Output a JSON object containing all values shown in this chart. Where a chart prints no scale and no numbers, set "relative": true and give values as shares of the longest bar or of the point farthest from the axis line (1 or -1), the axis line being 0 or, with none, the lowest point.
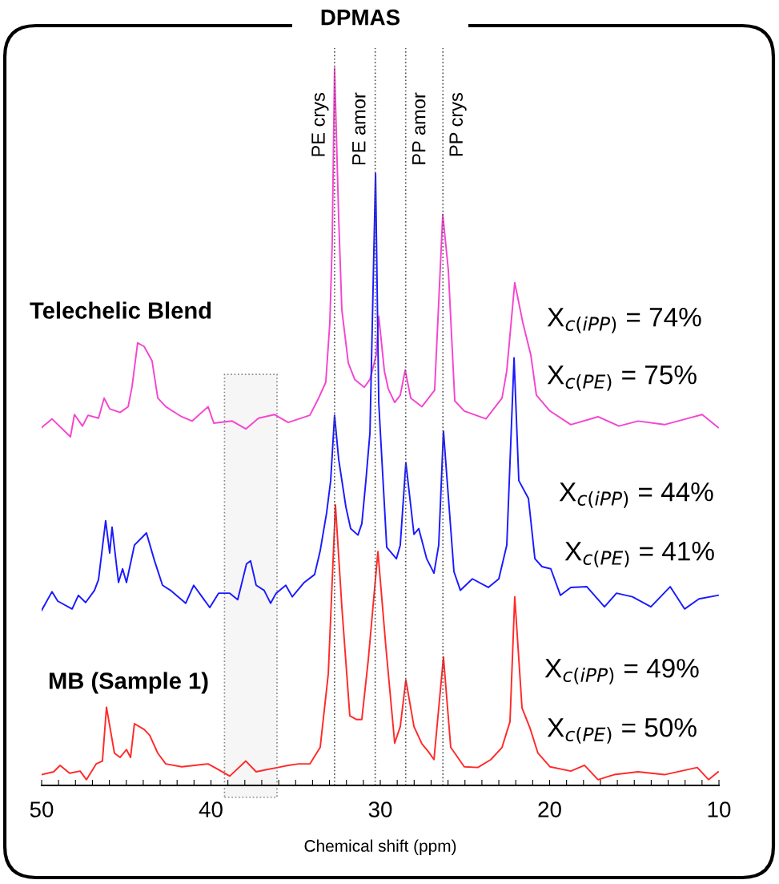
{
  "chart_data": {
    "type": "line",
    "title": "DPMAS",
    "xlabel": "Chemical shift (ppm)",
    "relative": true,
    "xlim": [
      50,
      10
    ],
    "xticks": [
      50,
      {
        "value": 49,
        "label": null
      },
      {
        "value": 48,
        "label": null
      },
      {
        "value": 47,
        "label": null
      },
      {
        "value": 46,
        "label": null
      },
      {
        "value": 45,
        "label": null
      },
      {
        "value": 44,
        "label": null
      },
      {
        "value": 43,
        "label": null
      },
      {
        "value": 42,
        "label": null
      },
      {
        "value": 41,
        "label": null
      },
      40,
      {
        "value": 39,
        "label": null
      },
      {
        "value": 38,
        "label": null
      },
      {
        "value": 37,
        "label": null
      },
      {
        "value": 36,
        "label": null
      },
      {
        "value": 35,
        "label": null
      },
      {
        "value": 34,
        "label": null
      },
      {
        "value": 33,
        "label": null
      },
      {
        "value": 32,
        "label": null
      },
      {
        "value": 31,
        "label": null
      },
      30,
      {
        "value": 29,
        "label": null
      },
      {
        "value": 28,
        "label": null
      },
      {
        "value": 27,
        "label": null
      },
      {
        "value": 26,
        "label": null
      },
      {
        "value": 25,
        "label": null
      },
      {
        "value": 24,
        "label": null
      },
      {
        "value": 23,
        "label": null
      },
      {
        "value": 22,
        "label": null
      },
      {
        "value": 21,
        "label": null
      },
      20,
      {
        "value": 19,
        "label": null
      },
      {
        "value": 18,
        "label": null
      },
      {
        "value": 17,
        "label": null
      },
      {
        "value": 16,
        "label": null
      },
      {
        "value": 15,
        "label": null
      },
      {
        "value": 14,
        "label": null
      },
      {
        "value": 13,
        "label": null
      },
      {
        "value": 12,
        "label": null
      },
      {
        "value": 11,
        "label": null
      },
      10
    ],
    "grid": false,
    "line_style": "solid",
    "marker": "none",
    "series": [
      {
        "name": "Telechelic Blend",
        "color": "#f545d0",
        "x": [
          50.0,
          49.39,
          48.3,
          48.06,
          47.59,
          47.26,
          46.64,
          46.31,
          45.98,
          45.37,
          44.89,
          44.66,
          44.33,
          43.95,
          43.48,
          43.14,
          42.67,
          41.73,
          41.11,
          40.17,
          39.83,
          38.75,
          37.94,
          37.19,
          36.24,
          35.44,
          34.16,
          33.64,
          33.22,
          32.98,
          32.84,
          32.7,
          32.46,
          32.27,
          31.89,
          31.51,
          30.95,
          30.61,
          30.24,
          30.09,
          29.76,
          29.53,
          29.15,
          28.82,
          28.53,
          28.2,
          27.54,
          26.79,
          26.31,
          25.98,
          25.6,
          25.04,
          23.76,
          22.81,
          22.53,
          22.06,
          21.58,
          21.11,
          20.78,
          19.98,
          18.75,
          17.14,
          15.91,
          14.78,
          13.22,
          11.94,
          10.99,
          10.05
        ],
        "values": [
          0.499,
          0.511,
          0.486,
          0.517,
          0.501,
          0.516,
          0.512,
          0.54,
          0.525,
          0.52,
          0.528,
          0.556,
          0.617,
          0.612,
          0.592,
          0.54,
          0.528,
          0.514,
          0.508,
          0.528,
          0.505,
          0.508,
          0.497,
          0.512,
          0.517,
          0.506,
          0.516,
          0.54,
          0.562,
          0.645,
          0.756,
          1,
          0.793,
          0.663,
          0.589,
          0.566,
          0.555,
          0.566,
          0.6,
          0.654,
          0.578,
          0.553,
          0.534,
          0.544,
          0.579,
          0.54,
          0.528,
          0.551,
          0.796,
          0.718,
          0.536,
          0.522,
          0.511,
          0.54,
          0.578,
          0.701,
          0.645,
          0.6,
          0.544,
          0.522,
          0.503,
          0.514,
          0.501,
          0.508,
          0.503,
          0.511,
          0.517,
          0.499
        ]
      },
      {
        "color": "#1a1aff",
        "x": [
          50.0,
          49.39,
          49.05,
          48.2,
          47.83,
          47.4,
          46.88,
          46.64,
          46.22,
          45.98,
          45.84,
          45.46,
          45.22,
          44.99,
          44.52,
          43.81,
          43.33,
          42.86,
          42.39,
          41.49,
          41.02,
          40.07,
          39.55,
          38.89,
          38.42,
          37.9,
          37.66,
          37.33,
          36.86,
          36.48,
          36.15,
          35.58,
          35.2,
          34.49,
          33.88,
          33.55,
          33.17,
          32.93,
          32.7,
          32.46,
          32.03,
          31.75,
          31.32,
          31.09,
          30.85,
          30.61,
          30.28,
          30.09,
          29.62,
          29.05,
          28.82,
          28.49,
          28.01,
          27.73,
          27.26,
          26.83,
          26.55,
          26.27,
          25.65,
          25.27,
          24.56,
          23.62,
          23.0,
          22.53,
          22.1,
          21.82,
          21.25,
          20.87,
          20.45,
          19.93,
          19.36,
          18.75,
          17.8,
          16.76,
          16.05,
          15.11,
          14.02,
          12.88,
          12.03,
          11.18,
          10.05
        ],
        "values": [
          0.244,
          0.27,
          0.257,
          0.246,
          0.265,
          0.255,
          0.272,
          0.287,
          0.369,
          0.324,
          0.36,
          0.283,
          0.302,
          0.283,
          0.335,
          0.352,
          0.313,
          0.279,
          0.272,
          0.254,
          0.279,
          0.248,
          0.268,
          0.268,
          0.259,
          0.309,
          0.313,
          0.279,
          0.272,
          0.254,
          0.268,
          0.279,
          0.263,
          0.283,
          0.294,
          0.327,
          0.38,
          0.425,
          0.516,
          0.455,
          0.388,
          0.358,
          0.349,
          0.365,
          0.425,
          0.492,
          0.853,
          0.533,
          0.332,
          0.316,
          0.335,
          0.45,
          0.35,
          0.358,
          0.316,
          0.296,
          0.335,
          0.494,
          0.298,
          0.272,
          0.288,
          0.276,
          0.288,
          0.335,
          0.596,
          0.425,
          0.4,
          0.316,
          0.305,
          0.302,
          0.265,
          0.276,
          0.277,
          0.249,
          0.268,
          0.263,
          0.249,
          0.277,
          0.246,
          0.26,
          0.265
        ]
      },
      {
        "name": "MB (Sample 1)",
        "color": "#ff2a2a",
        "x": [
          50.0,
          49.29,
          48.91,
          48.35,
          47.73,
          47.35,
          46.78,
          46.41,
          46.17,
          45.7,
          45.37,
          44.99,
          44.75,
          44.52,
          43.95,
          43.62,
          43.14,
          42.67,
          41.73,
          40.97,
          40.17,
          39.55,
          38.89,
          37.94,
          37.33,
          36.71,
          36.05,
          35.44,
          34.82,
          34.16,
          33.55,
          33.07,
          32.65,
          32.27,
          31.8,
          31.42,
          31.09,
          30.71,
          30.14,
          29.67,
          29.15,
          28.82,
          28.49,
          28.01,
          27.54,
          27.16,
          26.83,
          26.27,
          25.84,
          25.04,
          24.24,
          23.47,
          22.81,
          22.34,
          22.06,
          21.63,
          21.16,
          20.69,
          19.98,
          18.75,
          17.94,
          17.14,
          16.19,
          14.78,
          13.22,
          11.28,
          10.61,
          10.05
        ],
        "values": [
          0.015,
          0.019,
          0.028,
          0.017,
          0.02,
          0.008,
          0.03,
          0.034,
          0.109,
          0.045,
          0.039,
          0.05,
          0.039,
          0.086,
          0.078,
          0.07,
          0.045,
          0.03,
          0.026,
          0.028,
          0.03,
          0.022,
          0.013,
          0.034,
          0.019,
          0.022,
          0.025,
          0.028,
          0.03,
          0.03,
          0.053,
          0.156,
          0.391,
          0.249,
          0.097,
          0.092,
          0.092,
          0.175,
          0.326,
          0.193,
          0.059,
          0.082,
          0.147,
          0.082,
          0.058,
          0.047,
          0.036,
          0.179,
          0.053,
          0.026,
          0.025,
          0.036,
          0.053,
          0.089,
          0.263,
          0.108,
          0.08,
          0.045,
          0.026,
          0.02,
          0.028,
          0.008,
          0.015,
          0.019,
          0.015,
          0.025,
          0.008,
          0.019
        ]
      }
    ],
    "ref_lines": [
      {
        "axis": "x",
        "value": 32.7,
        "label": "PE crys",
        "color": "#555555",
        "line_style": "dotted"
      },
      {
        "axis": "x",
        "value": 30.3,
        "label": "PE amor",
        "color": "#555555",
        "line_style": "dotted"
      },
      {
        "axis": "x",
        "value": 28.5,
        "label": "PP amor",
        "color": "#555555",
        "line_style": "dotted"
      },
      {
        "axis": "x",
        "value": 26.3,
        "label": "PP crys",
        "color": "#555555",
        "line_style": "dotted"
      }
    ],
    "bands": [
      {
        "axis": "x",
        "from": 39.2,
        "to": 36.1,
        "color": "#888888"
      }
    ],
    "annotations": [
      "X$_{c(iPP)}$ = 74%",
      "X$_{c(PE)}$ = 75%",
      "X$_{c(iPP)}$ = 44%",
      "X$_{c(PE)}$ = 41%",
      "X$_{c(iPP)}$ = 49%",
      "X$_{c(PE)}$ = 50%"
    ]
  }
}
